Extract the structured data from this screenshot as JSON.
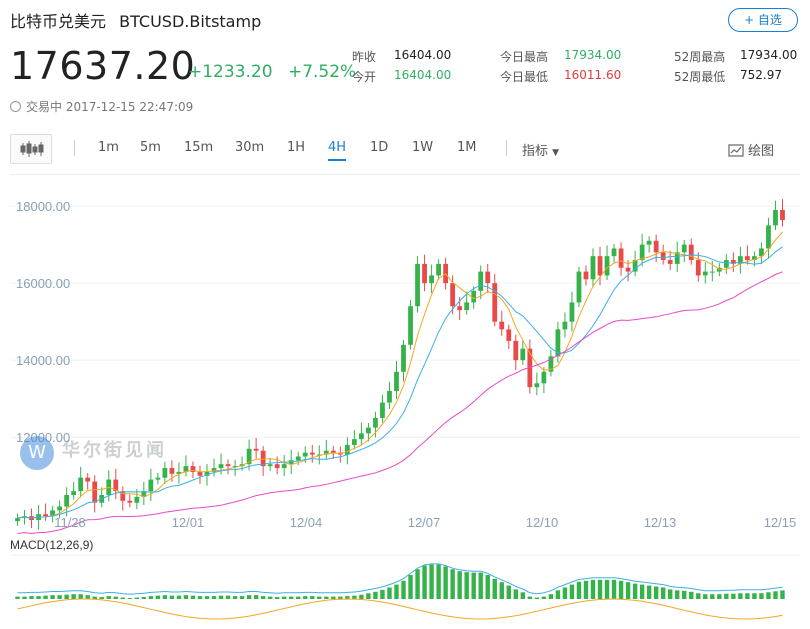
{
  "header": {
    "name": "比特币兑美元",
    "symbol": "BTCUSD.Bitstamp",
    "watch_label": "+ 自选",
    "price": "17637.20",
    "change": "+1233.20",
    "change_pct": "+7.52%",
    "status": "交易中 2017-12-15 22:47:09"
  },
  "stats": {
    "prev_close_label": "昨收",
    "prev_close": "16404.00",
    "open_label": "今开",
    "open": "16404.00",
    "day_high_label": "今日最高",
    "day_high": "17934.00",
    "day_low_label": "今日最低",
    "day_low": "16011.60",
    "wk52_high_label": "52周最高",
    "wk52_high": "17934.00",
    "wk52_low_label": "52周最低",
    "wk52_low": "752.97"
  },
  "toolbar": {
    "intervals": [
      "1m",
      "5m",
      "15m",
      "30m",
      "1H",
      "4H",
      "1D",
      "1W",
      "1M"
    ],
    "active_interval": "4H",
    "indicator_label": "指标",
    "draw_label": "绘图"
  },
  "chart_data": {
    "type": "candlestick",
    "ylim": [
      10500,
      18600
    ],
    "yticks": [
      "18000.00",
      "16000.00",
      "14000.00",
      "12000.00"
    ],
    "xticks": [
      "11/28",
      "12/01",
      "12/04",
      "12/07",
      "12/10",
      "12/13",
      "12/15"
    ],
    "closes": [
      9900,
      9950,
      9850,
      10000,
      9950,
      10100,
      10200,
      10500,
      10600,
      10950,
      10850,
      10300,
      10500,
      10900,
      10600,
      10350,
      10300,
      10450,
      10600,
      10900,
      10950,
      11200,
      11050,
      11100,
      11250,
      11100,
      11000,
      11100,
      11200,
      11300,
      11250,
      11250,
      11300,
      11700,
      11650,
      11250,
      11300,
      11200,
      11300,
      11400,
      11500,
      11600,
      11550,
      11550,
      11650,
      11600,
      11550,
      11800,
      11950,
      12100,
      12250,
      12500,
      12900,
      13200,
      13700,
      14400,
      15400,
      16500,
      16000,
      16200,
      16500,
      16000,
      15400,
      15300,
      15500,
      15800,
      16300,
      16000,
      15000,
      14800,
      14500,
      14000,
      14300,
      13300,
      13400,
      13700,
      14100,
      14800,
      15000,
      15500,
      16300,
      16100,
      16700,
      16200,
      16700,
      16900,
      16400,
      16300,
      16600,
      17000,
      17100,
      16800,
      16600,
      16500,
      16800,
      17000,
      16600,
      16200,
      16300,
      16300,
      16400,
      16600,
      16500,
      16700,
      16600,
      16700,
      16900,
      17500,
      17900,
      17637
    ],
    "indicator_title": "MACD(12,26,9)",
    "macd_hist": [
      0.05,
      0.05,
      0.06,
      0.06,
      0.07,
      0.08,
      0.08,
      0.09,
      0.1,
      0.1,
      0.08,
      0.05,
      0.04,
      0.06,
      0.05,
      0.03,
      0.02,
      0.03,
      0.04,
      0.06,
      0.07,
      0.08,
      0.07,
      0.07,
      0.08,
      0.07,
      0.06,
      0.06,
      0.06,
      0.07,
      0.07,
      0.06,
      0.06,
      0.08,
      0.08,
      0.06,
      0.05,
      0.04,
      0.05,
      0.05,
      0.05,
      0.06,
      0.06,
      0.05,
      0.05,
      0.05,
      0.05,
      0.06,
      0.07,
      0.09,
      0.12,
      0.15,
      0.19,
      0.24,
      0.3,
      0.38,
      0.5,
      0.62,
      0.7,
      0.72,
      0.72,
      0.68,
      0.62,
      0.58,
      0.56,
      0.55,
      0.55,
      0.5,
      0.42,
      0.35,
      0.28,
      0.2,
      0.14,
      0.05,
      0.03,
      0.05,
      0.1,
      0.18,
      0.24,
      0.3,
      0.36,
      0.38,
      0.4,
      0.4,
      0.4,
      0.4,
      0.38,
      0.35,
      0.32,
      0.3,
      0.28,
      0.26,
      0.24,
      0.2,
      0.18,
      0.17,
      0.15,
      0.12,
      0.1,
      0.1,
      0.1,
      0.11,
      0.11,
      0.12,
      0.12,
      0.12,
      0.12,
      0.14,
      0.16,
      0.18
    ],
    "colors": {
      "up": "#35b34a",
      "down": "#e84a4a",
      "ma1": "#f5a623",
      "ma2": "#3bb0e8",
      "ma3": "#e84ac8"
    }
  },
  "watermark": {
    "logo": "W",
    "text": "华尔街见闻"
  }
}
